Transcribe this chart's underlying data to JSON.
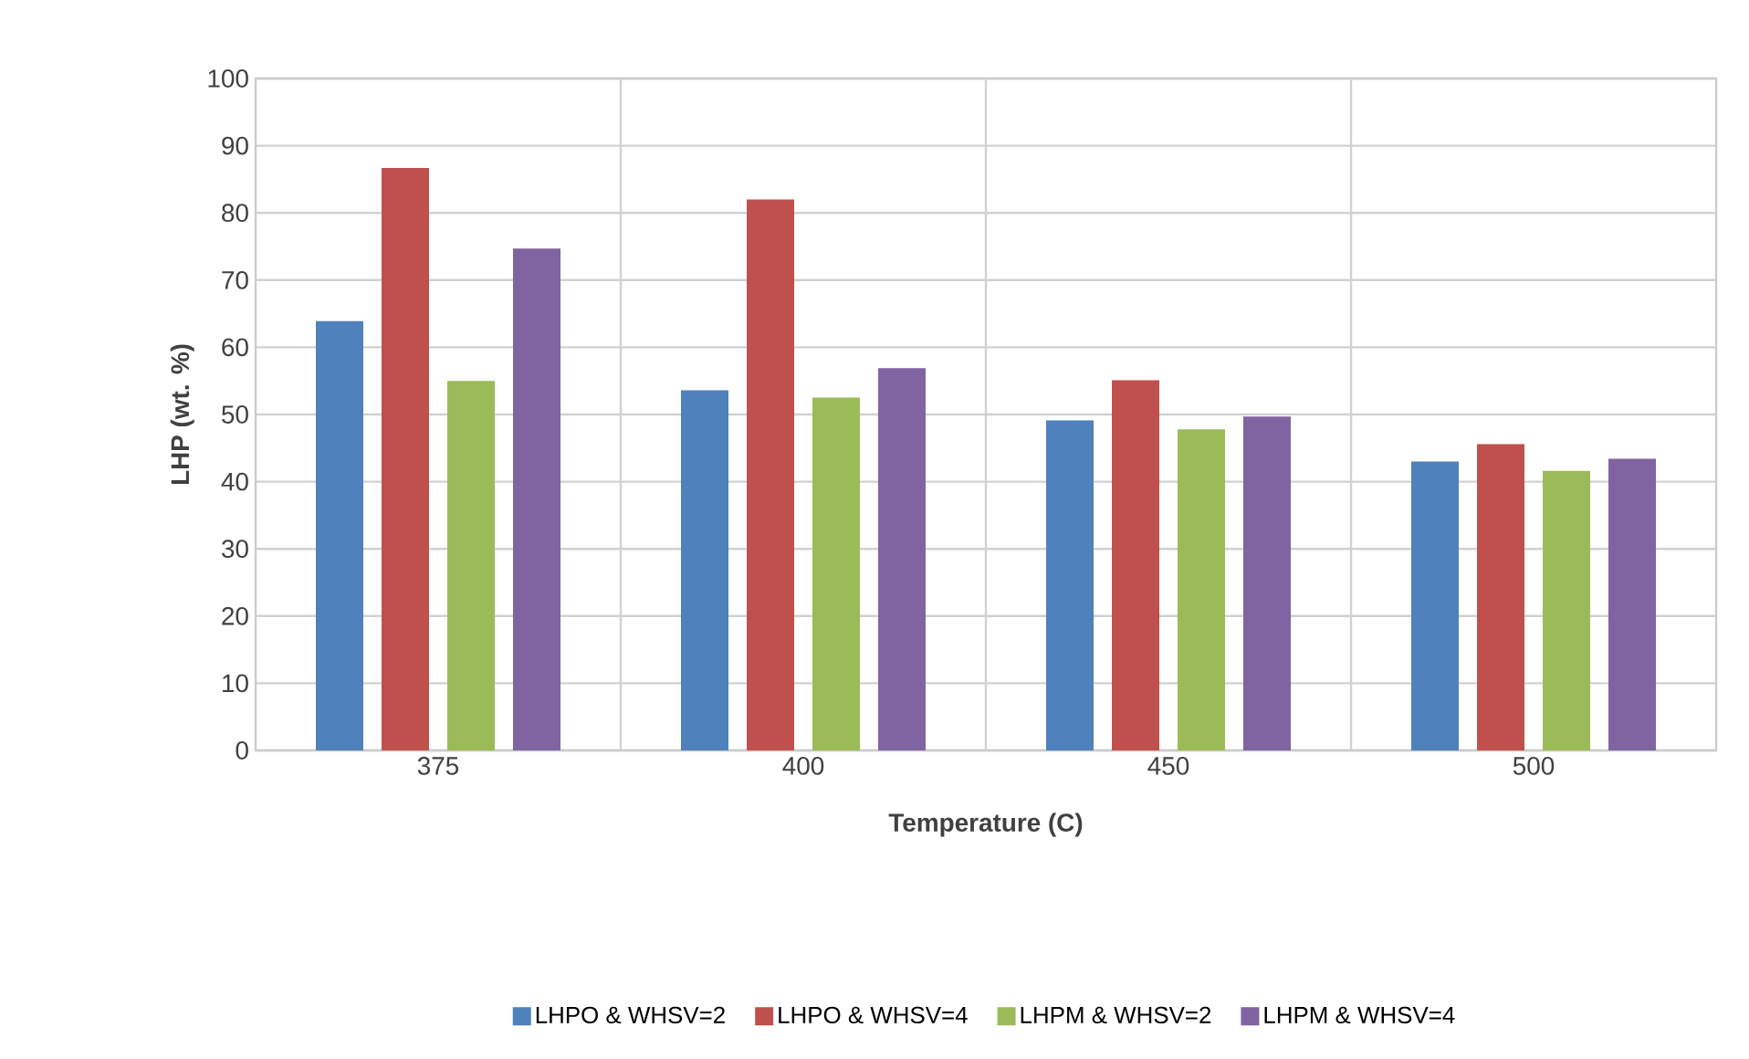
{
  "chart_data": {
    "type": "bar",
    "xlabel": "Temperature (C)",
    "ylabel": "LHP (wt. %)",
    "categories": [
      "375",
      "400",
      "450",
      "500"
    ],
    "series": [
      {
        "name": "LHPO & WHSV=2",
        "color": "#4f81bd",
        "values": [
          63.9,
          53.6,
          49.1,
          43.0
        ]
      },
      {
        "name": "LHPO & WHSV=4",
        "color": "#c0504d",
        "values": [
          86.7,
          82.0,
          55.1,
          45.6
        ]
      },
      {
        "name": "LHPM & WHSV=2",
        "color": "#9bbb59",
        "values": [
          55.0,
          52.5,
          47.8,
          41.6
        ]
      },
      {
        "name": "LHPM & WHSV=4",
        "color": "#8064a2",
        "values": [
          74.7,
          56.9,
          49.7,
          43.4
        ]
      }
    ],
    "ylim": [
      0,
      100
    ],
    "yticks": [
      0,
      10,
      20,
      30,
      40,
      50,
      60,
      70,
      80,
      90,
      100
    ],
    "grid": true,
    "legend": "bottom"
  }
}
